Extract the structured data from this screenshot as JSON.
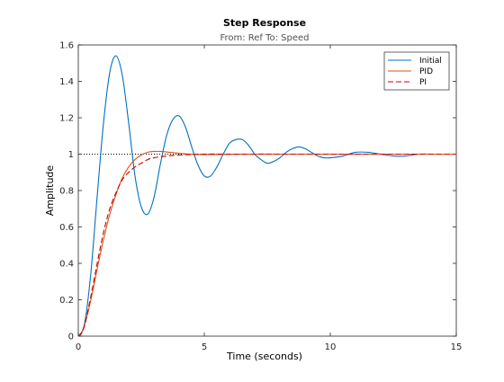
{
  "chart_data": {
    "type": "line",
    "title": "Step Response",
    "subtitle": "From: Ref  To: Speed",
    "xlabel": "Time (seconds)",
    "ylabel": "Amplitude",
    "xlim": [
      0,
      15
    ],
    "ylim": [
      0,
      1.6
    ],
    "x_ticks": [
      0,
      5,
      10,
      15
    ],
    "x_tick_labels": [
      "0",
      "5",
      "10",
      "15"
    ],
    "y_ticks": [
      0,
      0.2,
      0.4,
      0.6,
      0.8,
      1,
      1.2,
      1.4,
      1.6
    ],
    "y_tick_labels": [
      "0",
      "0.2",
      "0.4",
      "0.6",
      "0.8",
      "1",
      "1.2",
      "1.4",
      "1.6"
    ],
    "grid": false,
    "legend_position": "top-right",
    "reference_line": {
      "y": 1,
      "style": "dotted",
      "color": "#000000"
    },
    "series": [
      {
        "name": "Initial",
        "color": "#0072BD",
        "style": "solid",
        "x": [
          0,
          0.25,
          0.5,
          0.75,
          1.0,
          1.25,
          1.5,
          1.75,
          2.0,
          2.25,
          2.5,
          2.75,
          3.0,
          3.25,
          3.5,
          3.75,
          4.0,
          4.25,
          4.5,
          4.75,
          5.0,
          5.25,
          5.5,
          5.75,
          6.0,
          6.25,
          6.5,
          6.75,
          7.0,
          7.25,
          7.5,
          7.75,
          8.0,
          8.25,
          8.5,
          8.75,
          9.0,
          9.25,
          9.5,
          9.75,
          10.0,
          10.5,
          11.0,
          11.5,
          12.0,
          12.5,
          13.0,
          13.5,
          14.0,
          14.5,
          15.0
        ],
        "y": [
          0,
          0.07,
          0.35,
          0.77,
          1.17,
          1.45,
          1.54,
          1.43,
          1.17,
          0.88,
          0.71,
          0.67,
          0.76,
          0.94,
          1.1,
          1.19,
          1.21,
          1.15,
          1.04,
          0.94,
          0.88,
          0.88,
          0.93,
          1.0,
          1.06,
          1.08,
          1.08,
          1.05,
          1.0,
          0.97,
          0.95,
          0.96,
          0.98,
          1.01,
          1.03,
          1.04,
          1.03,
          1.01,
          0.99,
          0.98,
          0.98,
          0.99,
          1.01,
          1.01,
          1.0,
          0.99,
          0.99,
          1.0,
          1.0,
          1.0,
          1.0
        ]
      },
      {
        "name": "PID",
        "color": "#D95319",
        "style": "solid",
        "x": [
          0,
          0.1,
          0.25,
          0.5,
          0.75,
          1.0,
          1.25,
          1.5,
          1.75,
          2.0,
          2.25,
          2.5,
          2.75,
          3.0,
          3.25,
          3.5,
          4.0,
          4.5,
          5.0,
          6.0,
          7.0,
          8.0,
          10.0,
          12.0,
          15.0
        ],
        "y": [
          0,
          0.01,
          0.06,
          0.2,
          0.37,
          0.53,
          0.67,
          0.78,
          0.87,
          0.93,
          0.97,
          0.995,
          1.01,
          1.015,
          1.015,
          1.012,
          1.005,
          1.0,
          0.998,
          0.999,
          1.0,
          1.0,
          1.0,
          1.0,
          1.0
        ]
      },
      {
        "name": "PI",
        "color": "#CC0000",
        "style": "dashed",
        "x": [
          0,
          0.1,
          0.25,
          0.5,
          0.75,
          1.0,
          1.25,
          1.5,
          1.75,
          2.0,
          2.25,
          2.5,
          2.75,
          3.0,
          3.5,
          4.0,
          4.5,
          5.0,
          6.0,
          7.0,
          8.0,
          10.0,
          12.0,
          15.0
        ],
        "y": [
          0,
          0.01,
          0.06,
          0.22,
          0.4,
          0.57,
          0.7,
          0.79,
          0.86,
          0.9,
          0.93,
          0.95,
          0.97,
          0.98,
          0.99,
          0.995,
          0.998,
          1.0,
          1.0,
          1.0,
          1.0,
          1.0,
          1.0,
          1.0
        ]
      }
    ]
  }
}
